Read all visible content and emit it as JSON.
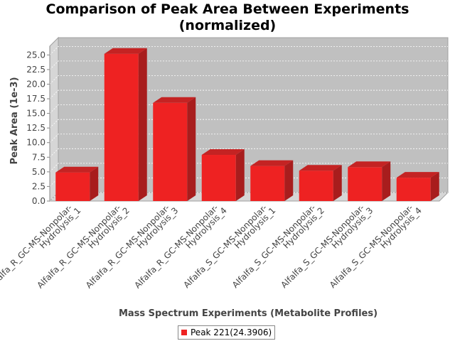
{
  "chart_data": {
    "type": "bar",
    "title_line1": "Comparison of Peak Area Between Experiments",
    "title_line2": "(normalized)",
    "xlabel": "Mass Spectrum Experiments (Metabolite Profiles)",
    "ylabel": "Peak Area (1e-3)",
    "ylim": [
      0,
      26.5
    ],
    "yticks": [
      "0.0",
      "2.5",
      "5.0",
      "7.5",
      "10.0",
      "12.5",
      "15.0",
      "17.5",
      "20.0",
      "22.5",
      "25.0"
    ],
    "grid": true,
    "legend_position": "bottom",
    "categories": [
      [
        "Alfalfa_R_GC-MS-Nonpolar-",
        "Hydrolysis_1"
      ],
      [
        "Alfalfa_R_GC-MS-Nonpolar-",
        "Hydrolysis_2"
      ],
      [
        "Alfalfa_R_GC-MS-Nonpolar-",
        "Hydrolysis_3"
      ],
      [
        "Alfalfa_R_GC-MS-Nonpolar-",
        "Hydrolysis_4"
      ],
      [
        "Alfalfa_S_GC-MS-Nonpolar-",
        "Hydrolysis_1"
      ],
      [
        "Alfalfa_S_GC-MS-Nonpolar-",
        "Hydrolysis_2"
      ],
      [
        "Alfalfa_S_GC-MS-Nonpolar-",
        "Hydrolysis_3"
      ],
      [
        "Alfalfa_S_GC-MS-Nonpolar-",
        "Hydrolysis_4"
      ]
    ],
    "series": [
      {
        "name": "Peak 221(24.3906)",
        "color": "#ee2222",
        "values": [
          4.9,
          25.2,
          16.8,
          7.9,
          6.0,
          5.2,
          5.8,
          4.0
        ]
      }
    ]
  }
}
